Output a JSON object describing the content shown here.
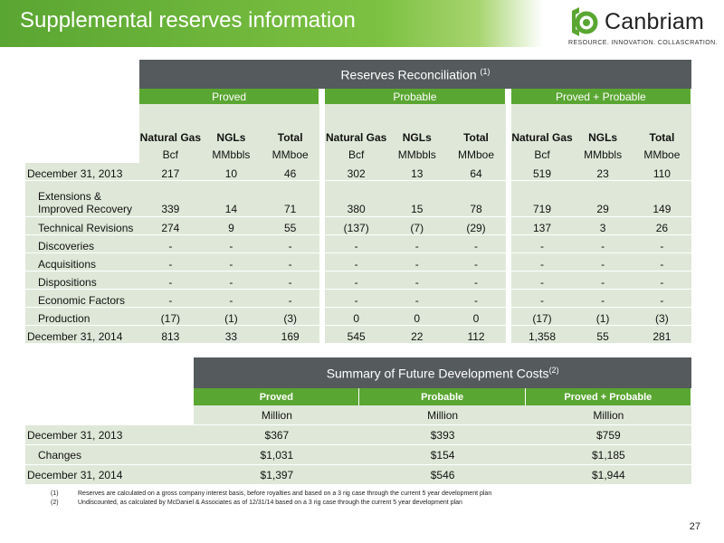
{
  "header": {
    "title": "Supplemental reserves information"
  },
  "logo": {
    "name": "Canbriam",
    "tagline": "RESOURCE. INNOVATION. COLLASCRATION.",
    "brand_color": "#5aa632"
  },
  "reserves": {
    "title": "Reserves Reconciliation ",
    "title_note": "(1)",
    "groups": [
      "Proved",
      "Probable",
      "Proved + Probable"
    ],
    "columns": [
      "Natural Gas",
      "NGLs",
      "Total"
    ],
    "units": [
      "Bcf",
      "MMbbls",
      "MMboe"
    ],
    "rows": [
      {
        "label": "December 31, 2013",
        "values": [
          "217",
          "10",
          "46",
          "302",
          "13",
          "64",
          "519",
          "23",
          "110"
        ]
      },
      {
        "label_line1": "Extensions &",
        "label_line2": "Improved Recovery",
        "values": [
          "339",
          "14",
          "71",
          "380",
          "15",
          "78",
          "719",
          "29",
          "149"
        ]
      },
      {
        "label": "Technical Revisions",
        "values": [
          "274",
          "9",
          "55",
          "(137)",
          "(7)",
          "(29)",
          "137",
          "3",
          "26"
        ]
      },
      {
        "label": "Discoveries",
        "values": [
          "-",
          "-",
          "-",
          "-",
          "-",
          "-",
          "-",
          "-",
          "-"
        ]
      },
      {
        "label": "Acquisitions",
        "values": [
          "-",
          "-",
          "-",
          "-",
          "-",
          "-",
          "-",
          "-",
          "-"
        ]
      },
      {
        "label": "Dispositions",
        "values": [
          "-",
          "-",
          "-",
          "-",
          "-",
          "-",
          "-",
          "-",
          "-"
        ]
      },
      {
        "label": "Economic Factors",
        "values": [
          "-",
          "-",
          "-",
          "-",
          "-",
          "-",
          "-",
          "-",
          "-"
        ]
      },
      {
        "label": "Production",
        "values": [
          "(17)",
          "(1)",
          "(3)",
          "0",
          "0",
          "0",
          "(17)",
          "(1)",
          "(3)"
        ]
      },
      {
        "label": "December 31, 2014",
        "values": [
          "813",
          "33",
          "169",
          "545",
          "22",
          "112",
          "1,358",
          "55",
          "281"
        ]
      }
    ]
  },
  "fdc": {
    "title": "Summary of Future Development Costs",
    "title_note": "(2)",
    "columns": [
      "Proved",
      "Probable",
      "Proved + Probable"
    ],
    "units": [
      "Million",
      "Million",
      "Million"
    ],
    "rows": [
      {
        "label": "December 31, 2013",
        "values": [
          "$367",
          "$393",
          "$759"
        ]
      },
      {
        "label": "Changes",
        "values": [
          "$1,031",
          "$154",
          "$1,185"
        ]
      },
      {
        "label": "December 31, 2014",
        "values": [
          "$1,397",
          "$546",
          "$1,944"
        ]
      }
    ]
  },
  "footnotes": [
    {
      "num": "(1)",
      "text": "Reserves are calculated on a gross company interest basis, before royalties and based on a 3 rig case through the current 5 year development plan"
    },
    {
      "num": "(2)",
      "text": "Undiscounted, as calculated by McDaniel & Associates as of 12/31/14 based on a 3 rig case through the current 5 year development plan"
    }
  ],
  "page_number": "27"
}
